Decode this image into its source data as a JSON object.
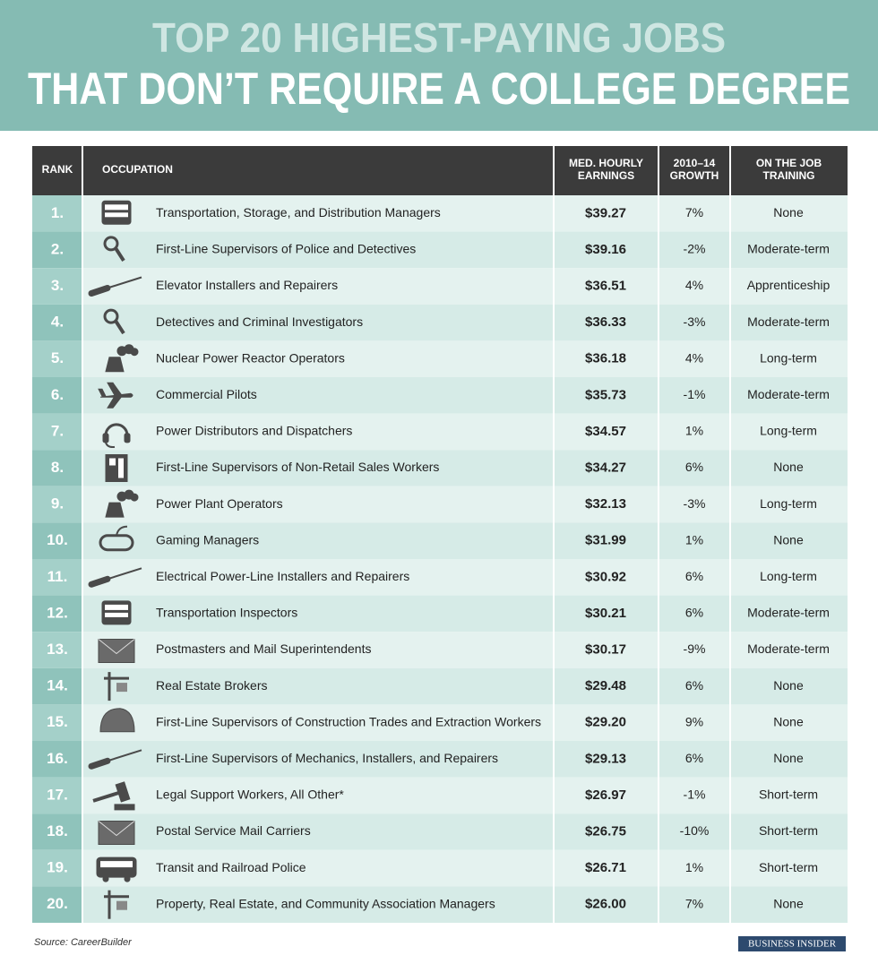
{
  "header": {
    "title_line1": "TOP 20 HIGHEST-PAYING JOBS",
    "title_line2": "THAT DON’T REQUIRE A COLLEGE DEGREE"
  },
  "table": {
    "columns": [
      [
        "RANK"
      ],
      [
        "OCCUPATION"
      ],
      [
        "MED. HOURLY",
        "EARNINGS"
      ],
      [
        "2010–14",
        "GROWTH"
      ],
      [
        "ON THE JOB",
        "TRAINING"
      ]
    ],
    "rows": [
      [
        "1.",
        "Transportation, Storage, and Distribution Managers",
        "$39.27",
        "7%",
        "None"
      ],
      [
        "2.",
        "First-Line Supervisors of Police and Detectives",
        "$39.16",
        "-2%",
        "Moderate-term"
      ],
      [
        "3.",
        "Elevator Installers and Repairers",
        "$36.51",
        "4%",
        "Apprenticeship"
      ],
      [
        "4.",
        "Detectives and Criminal Investigators",
        "$36.33",
        "-3%",
        "Moderate-term"
      ],
      [
        "5.",
        "Nuclear Power Reactor Operators",
        "$36.18",
        "4%",
        "Long-term"
      ],
      [
        "6.",
        "Commercial Pilots",
        "$35.73",
        "-1%",
        "Moderate-term"
      ],
      [
        "7.",
        "Power Distributors and Dispatchers",
        "$34.57",
        "1%",
        "Long-term"
      ],
      [
        "8.",
        "First-Line Supervisors of Non-Retail Sales Workers",
        "$34.27",
        "6%",
        "None"
      ],
      [
        "9.",
        "Power Plant Operators",
        "$32.13",
        "-3%",
        "Long-term"
      ],
      [
        "10.",
        "Gaming Managers",
        "$31.99",
        "1%",
        "None"
      ],
      [
        "11.",
        "Electrical Power-Line Installers and Repairers",
        "$30.92",
        "6%",
        "Long-term"
      ],
      [
        "12.",
        "Transportation Inspectors",
        "$30.21",
        "6%",
        "Moderate-term"
      ],
      [
        "13.",
        "Postmasters and Mail Superintendents",
        "$30.17",
        "-9%",
        "Moderate-term"
      ],
      [
        "14.",
        "Real Estate Brokers",
        "$29.48",
        "6%",
        "None"
      ],
      [
        "15.",
        "First-Line Supervisors of Construction Trades and Extraction Workers",
        "$29.20",
        "9%",
        "None"
      ],
      [
        "16.",
        "First-Line Supervisors of Mechanics, Installers, and Repairers",
        "$29.13",
        "6%",
        "None"
      ],
      [
        "17.",
        "Legal Support Workers, All Other*",
        "$26.97",
        "-1%",
        "Short-term"
      ],
      [
        "18.",
        "Postal Service Mail Carriers",
        "$26.75",
        "-10%",
        "Short-term"
      ],
      [
        "19.",
        "Transit and Railroad Police",
        "$26.71",
        "1%",
        "Short-term"
      ],
      [
        "20.",
        "Property, Real Estate, and Community Association Managers",
        "$26.00",
        "7%",
        "None"
      ]
    ]
  },
  "footer": {
    "source": "Source: CareerBuilder",
    "brand": "BUSINESS INSIDER"
  }
}
